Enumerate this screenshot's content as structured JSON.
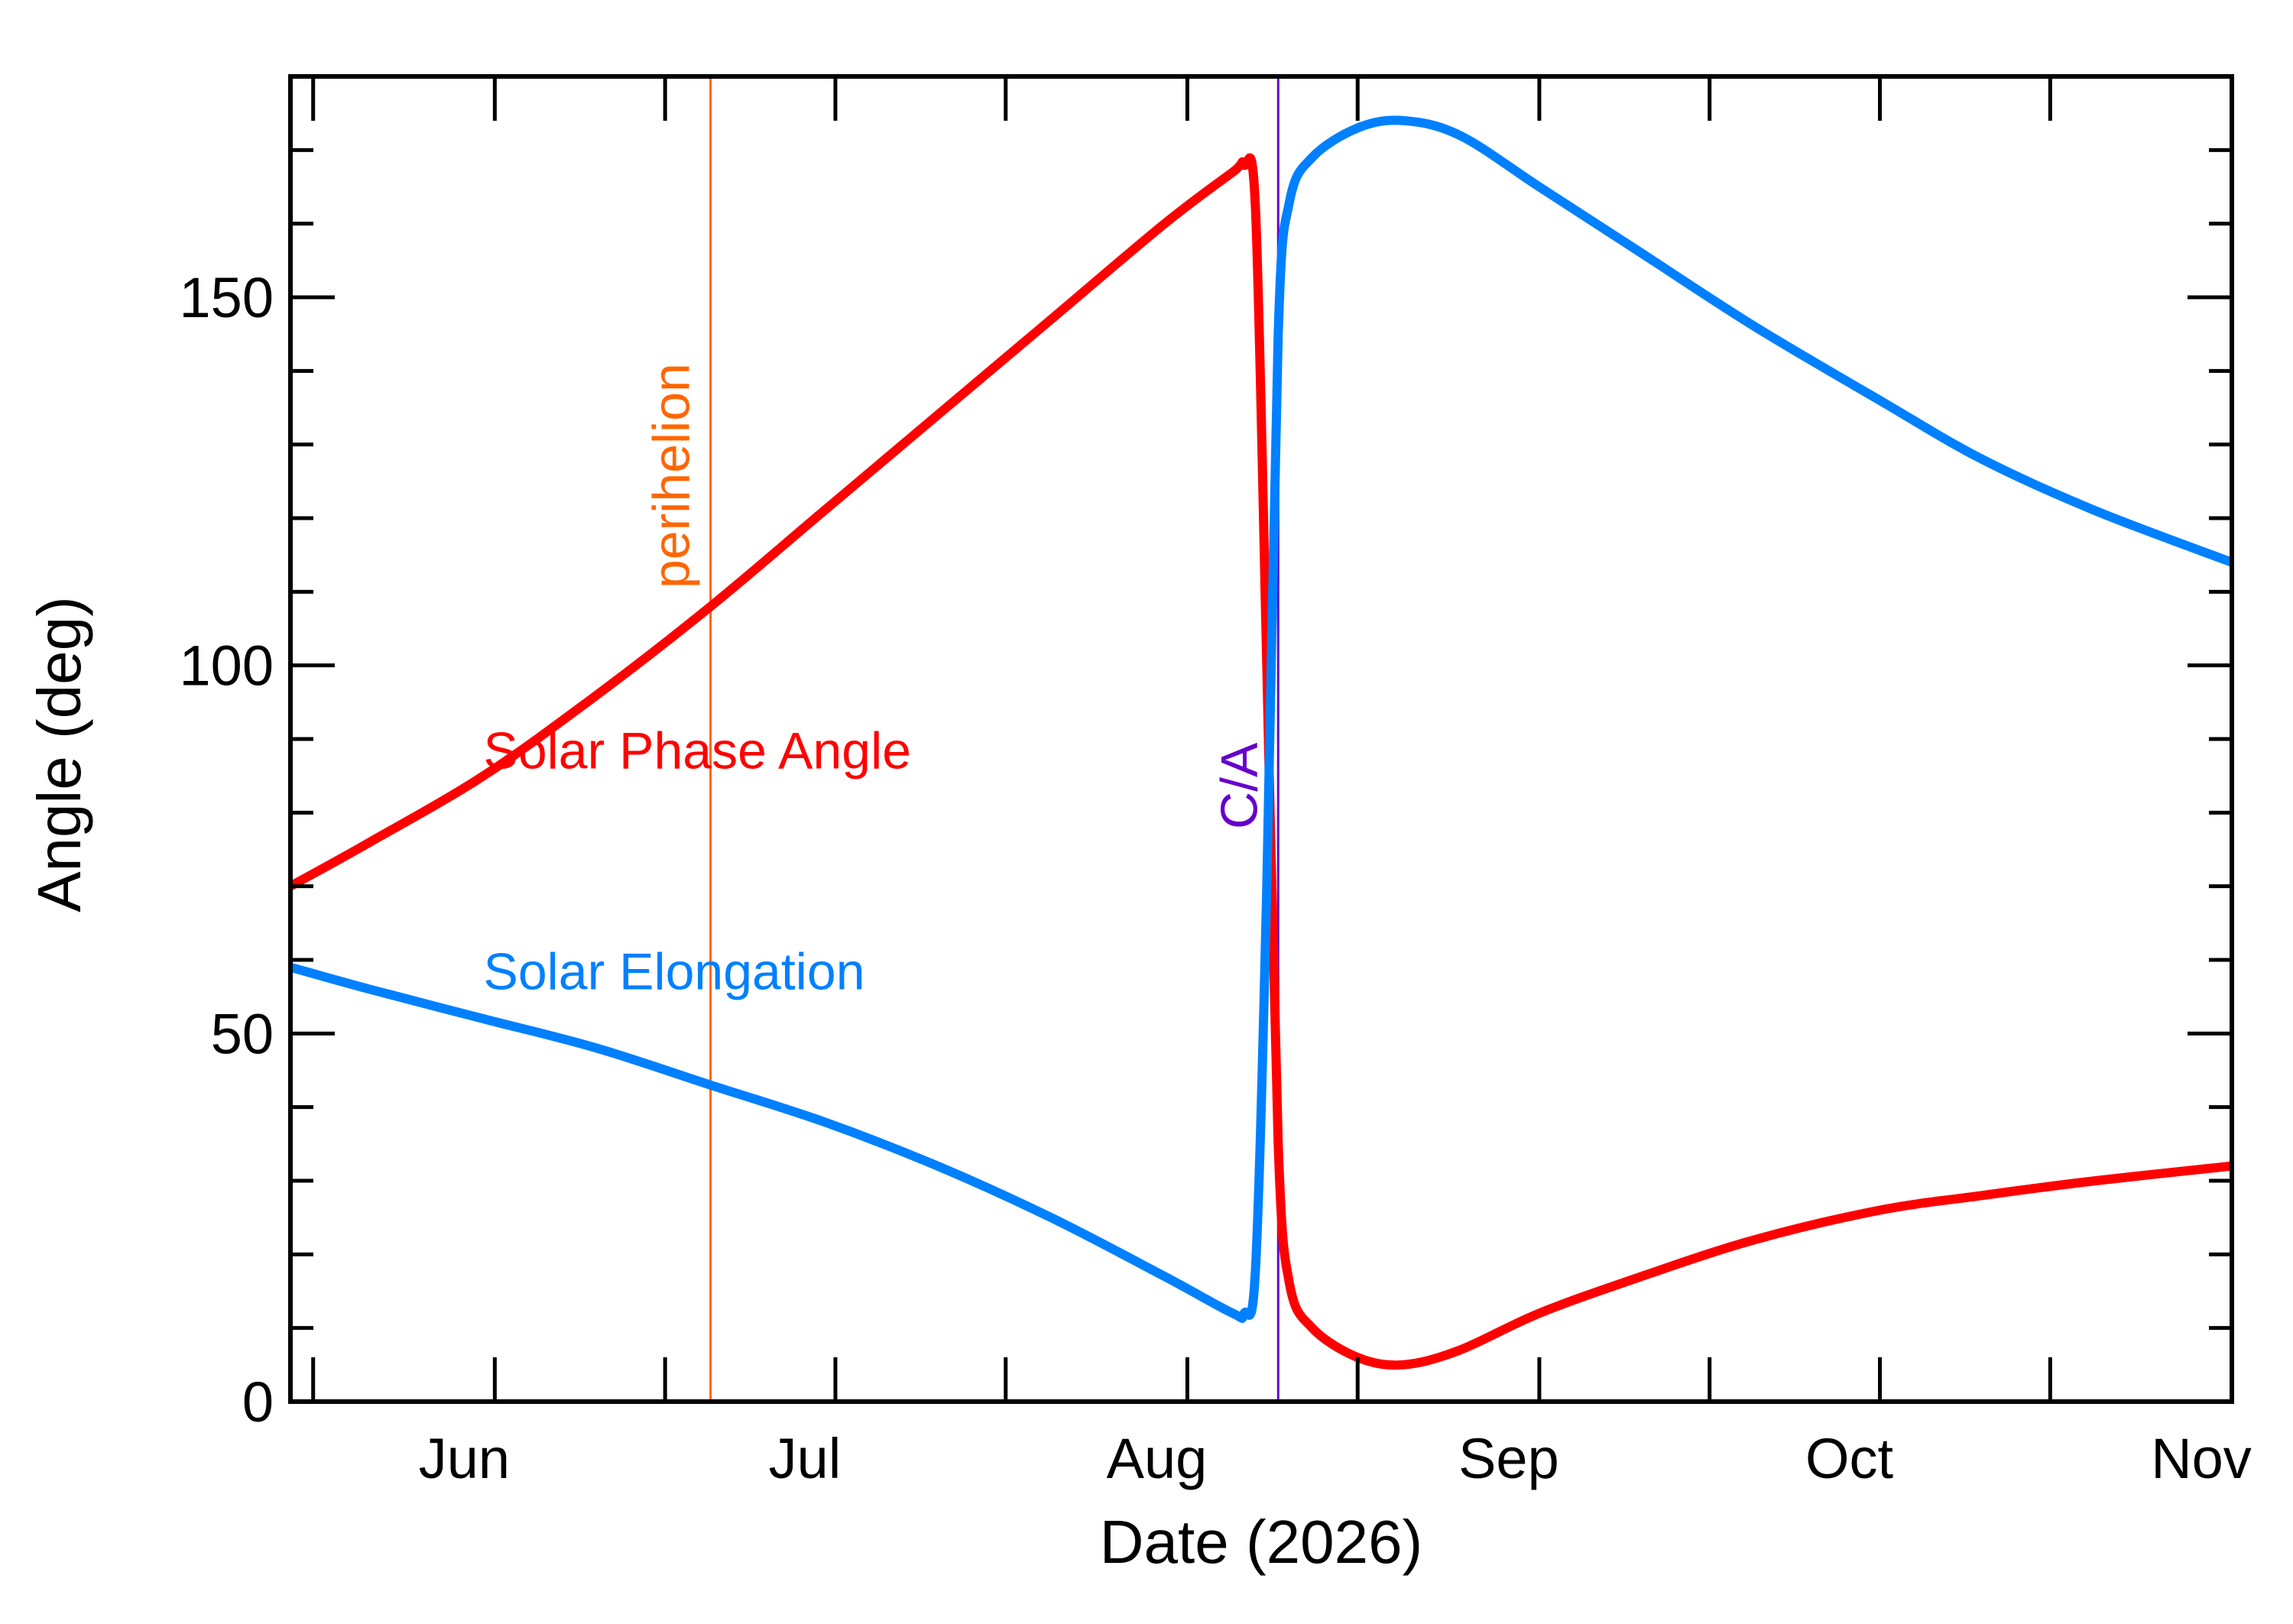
{
  "chart_data": {
    "type": "line",
    "xlabel": "Date (2026)",
    "ylabel": "Angle (deg)",
    "ylim": [
      0,
      180
    ],
    "yticks": [
      0,
      50,
      100,
      150
    ],
    "xlim": [
      "2026-05-14",
      "2026-11-01"
    ],
    "xticks": [
      {
        "date": "2026-06-01",
        "label": "Jun"
      },
      {
        "date": "2026-07-01",
        "label": "Jul"
      },
      {
        "date": "2026-08-01",
        "label": "Aug"
      },
      {
        "date": "2026-09-01",
        "label": "Sep"
      },
      {
        "date": "2026-10-01",
        "label": "Oct"
      },
      {
        "date": "2026-11-01",
        "label": "Nov"
      }
    ],
    "grid": false,
    "series": [
      {
        "name": "Solar Phase Angle",
        "color": "#ff0000",
        "points": [
          [
            "2026-05-14",
            70
          ],
          [
            "2026-05-21",
            76
          ],
          [
            "2026-05-31",
            85
          ],
          [
            "2026-06-10",
            96
          ],
          [
            "2026-06-20",
            108
          ],
          [
            "2026-06-30",
            121
          ],
          [
            "2026-07-10",
            134
          ],
          [
            "2026-07-20",
            147
          ],
          [
            "2026-07-30",
            160
          ],
          [
            "2026-08-05",
            167
          ],
          [
            "2026-08-06",
            168
          ],
          [
            "2026-08-07",
            162
          ],
          [
            "2026-08-08",
            100
          ],
          [
            "2026-08-09",
            35
          ],
          [
            "2026-08-10",
            16
          ],
          [
            "2026-08-12",
            10
          ],
          [
            "2026-08-16",
            6
          ],
          [
            "2026-08-20",
            5
          ],
          [
            "2026-08-25",
            7
          ],
          [
            "2026-09-01",
            12
          ],
          [
            "2026-09-10",
            17
          ],
          [
            "2026-09-20",
            22
          ],
          [
            "2026-10-01",
            26
          ],
          [
            "2026-10-10",
            28
          ],
          [
            "2026-10-20",
            30
          ],
          [
            "2026-11-01",
            32
          ]
        ]
      },
      {
        "name": "Solar Elongation",
        "color": "#0080ff",
        "points": [
          [
            "2026-05-14",
            59
          ],
          [
            "2026-05-21",
            56
          ],
          [
            "2026-05-31",
            52
          ],
          [
            "2026-06-10",
            48
          ],
          [
            "2026-06-20",
            43
          ],
          [
            "2026-06-30",
            38
          ],
          [
            "2026-07-10",
            32
          ],
          [
            "2026-07-20",
            25
          ],
          [
            "2026-07-30",
            17
          ],
          [
            "2026-08-05",
            12
          ],
          [
            "2026-08-06",
            12
          ],
          [
            "2026-08-07",
            18
          ],
          [
            "2026-08-08",
            70
          ],
          [
            "2026-08-09",
            145
          ],
          [
            "2026-08-10",
            163
          ],
          [
            "2026-08-12",
            169
          ],
          [
            "2026-08-16",
            173
          ],
          [
            "2026-08-20",
            174
          ],
          [
            "2026-08-25",
            172
          ],
          [
            "2026-09-01",
            165
          ],
          [
            "2026-09-10",
            156
          ],
          [
            "2026-09-20",
            146
          ],
          [
            "2026-10-01",
            136
          ],
          [
            "2026-10-10",
            128
          ],
          [
            "2026-10-20",
            121
          ],
          [
            "2026-11-01",
            114
          ]
        ]
      }
    ],
    "series_labels": [
      {
        "text": "Solar Phase Angle",
        "date": "2026-05-31",
        "value": 86,
        "color": "#ff0000"
      },
      {
        "text": "Solar Elongation",
        "date": "2026-05-31",
        "value": 56,
        "color": "#0080ff"
      }
    ],
    "markers": [
      {
        "label": "perihelion",
        "date": "2026-06-20",
        "color": "#ff6600"
      },
      {
        "label": "C/A",
        "date": "2026-08-09",
        "color": "#6600cc"
      }
    ]
  }
}
